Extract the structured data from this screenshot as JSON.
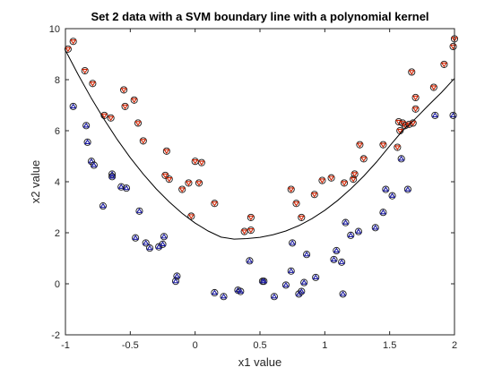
{
  "chart_data": {
    "type": "scatter",
    "title": "Set 2 data with a SVM boundary line with a polynomial kernel",
    "xlabel": "x1 value",
    "ylabel": "x2 value",
    "xlim": [
      -1,
      2
    ],
    "ylim": [
      -2,
      10
    ],
    "xticks": [
      -1,
      -0.5,
      0,
      0.5,
      1,
      1.5,
      2
    ],
    "xtick_labels": [
      "-1",
      "-0.5",
      "0",
      "0.5",
      "1",
      "1.5",
      "2"
    ],
    "yticks": [
      -2,
      0,
      2,
      4,
      6,
      8,
      10
    ],
    "ytick_labels": [
      "-2",
      "0",
      "2",
      "4",
      "6",
      "8",
      "10"
    ],
    "grid": false,
    "colors": {
      "class_upper": "#cc2200",
      "class_lower": "#1a1aa0",
      "boundary": "#000000",
      "axes": "#262626"
    },
    "series": [
      {
        "marker": "circle-with-inner-triangle",
        "color": "#cc2200",
        "points": [
          [
            -0.98,
            9.2
          ],
          [
            -0.94,
            9.5
          ],
          [
            -0.85,
            8.35
          ],
          [
            -0.79,
            7.85
          ],
          [
            -0.7,
            6.6
          ],
          [
            -0.65,
            6.5
          ],
          [
            -0.55,
            7.6
          ],
          [
            -0.54,
            6.95
          ],
          [
            -0.47,
            7.2
          ],
          [
            -0.44,
            6.3
          ],
          [
            -0.4,
            5.6
          ],
          [
            -0.22,
            5.2
          ],
          [
            -0.23,
            4.25
          ],
          [
            -0.2,
            4.1
          ],
          [
            -0.1,
            3.7
          ],
          [
            -0.05,
            3.95
          ],
          [
            0.0,
            4.8
          ],
          [
            0.05,
            4.75
          ],
          [
            0.03,
            3.95
          ],
          [
            -0.03,
            2.65
          ],
          [
            0.15,
            3.15
          ],
          [
            0.38,
            2.05
          ],
          [
            0.43,
            2.1
          ],
          [
            0.43,
            2.6
          ],
          [
            0.74,
            3.7
          ],
          [
            0.78,
            3.15
          ],
          [
            0.82,
            2.6
          ],
          [
            0.92,
            3.5
          ],
          [
            0.98,
            4.05
          ],
          [
            1.05,
            4.15
          ],
          [
            1.15,
            3.95
          ],
          [
            1.22,
            4.1
          ],
          [
            1.23,
            4.3
          ],
          [
            1.27,
            5.45
          ],
          [
            1.3,
            4.9
          ],
          [
            1.45,
            5.45
          ],
          [
            1.56,
            5.35
          ],
          [
            1.57,
            6.35
          ],
          [
            1.6,
            6.3
          ],
          [
            1.62,
            6.2
          ],
          [
            1.65,
            6.25
          ],
          [
            1.68,
            6.3
          ],
          [
            1.7,
            6.85
          ],
          [
            1.7,
            7.3
          ],
          [
            1.67,
            8.3
          ],
          [
            1.84,
            7.7
          ],
          [
            1.92,
            8.6
          ],
          [
            1.99,
            9.3
          ],
          [
            2.0,
            9.6
          ],
          [
            1.58,
            6.0
          ]
        ]
      },
      {
        "marker": "circle-with-inner-triangle",
        "color": "#1a1aa0",
        "points": [
          [
            -0.94,
            6.95
          ],
          [
            -0.84,
            6.2
          ],
          [
            -0.83,
            5.55
          ],
          [
            -0.8,
            4.8
          ],
          [
            -0.78,
            4.65
          ],
          [
            -0.71,
            3.05
          ],
          [
            -0.64,
            4.3
          ],
          [
            -0.64,
            4.2
          ],
          [
            -0.57,
            3.8
          ],
          [
            -0.53,
            3.75
          ],
          [
            -0.43,
            2.85
          ],
          [
            -0.46,
            1.8
          ],
          [
            -0.38,
            1.6
          ],
          [
            -0.35,
            1.4
          ],
          [
            -0.28,
            1.45
          ],
          [
            -0.25,
            1.55
          ],
          [
            -0.24,
            1.85
          ],
          [
            -0.14,
            0.3
          ],
          [
            -0.15,
            0.1
          ],
          [
            0.15,
            -0.35
          ],
          [
            0.22,
            -0.5
          ],
          [
            0.33,
            -0.25
          ],
          [
            0.35,
            -0.3
          ],
          [
            0.42,
            0.9
          ],
          [
            0.52,
            0.1
          ],
          [
            0.53,
            0.1
          ],
          [
            0.61,
            -0.5
          ],
          [
            0.7,
            -0.05
          ],
          [
            0.74,
            0.5
          ],
          [
            0.75,
            1.6
          ],
          [
            0.8,
            -0.4
          ],
          [
            0.82,
            -0.3
          ],
          [
            0.84,
            0.05
          ],
          [
            0.86,
            1.15
          ],
          [
            0.93,
            0.25
          ],
          [
            1.07,
            0.95
          ],
          [
            1.09,
            1.3
          ],
          [
            1.13,
            0.85
          ],
          [
            1.14,
            -0.4
          ],
          [
            1.16,
            2.4
          ],
          [
            1.2,
            1.9
          ],
          [
            1.26,
            2.05
          ],
          [
            1.39,
            2.2
          ],
          [
            1.45,
            2.8
          ],
          [
            1.47,
            3.7
          ],
          [
            1.52,
            3.45
          ],
          [
            1.59,
            4.9
          ],
          [
            1.64,
            3.7
          ],
          [
            1.85,
            6.6
          ],
          [
            1.99,
            6.6
          ]
        ]
      }
    ],
    "boundary": {
      "type": "line",
      "note": "",
      "x": [
        -1.0,
        -0.9,
        -0.8,
        -0.7,
        -0.6,
        -0.5,
        -0.4,
        -0.3,
        -0.2,
        -0.1,
        0.0,
        0.1,
        0.2,
        0.3,
        0.4,
        0.5,
        0.6,
        0.7,
        0.8,
        0.9,
        1.0,
        1.1,
        1.2,
        1.3,
        1.4,
        1.5,
        1.6,
        1.7,
        1.8,
        1.9,
        2.0
      ],
      "y": [
        9.15,
        8.18,
        7.27,
        6.43,
        5.65,
        4.94,
        4.3,
        3.72,
        3.21,
        2.76,
        2.38,
        2.07,
        1.83,
        1.75,
        1.77,
        1.82,
        1.92,
        2.07,
        2.28,
        2.55,
        2.88,
        3.27,
        3.72,
        4.22,
        4.78,
        5.4,
        6.0,
        6.48,
        7.0,
        7.5,
        8.05
      ]
    }
  }
}
